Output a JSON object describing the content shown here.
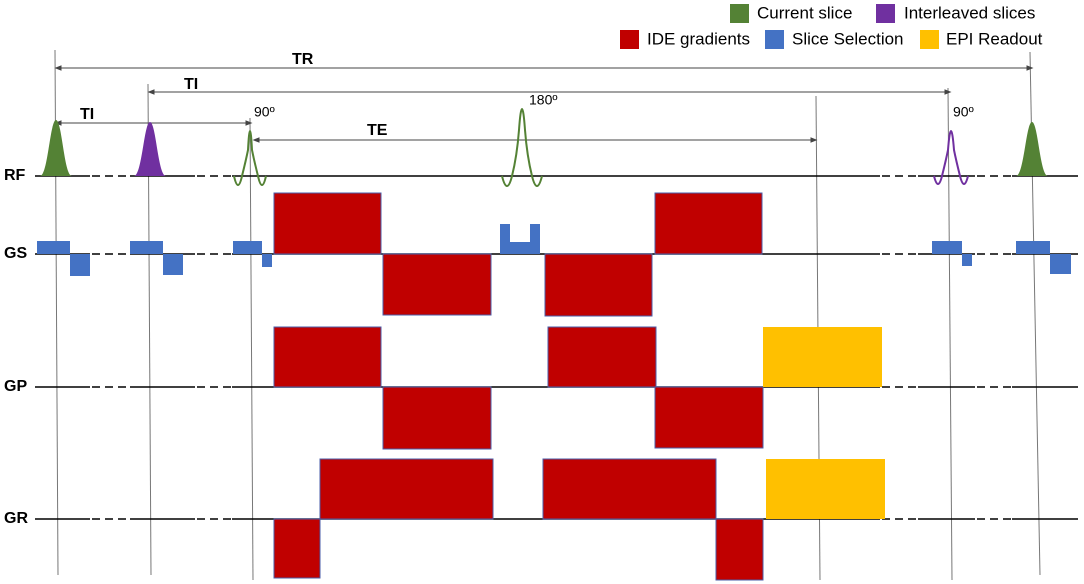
{
  "legend": [
    {
      "label": "Current slice",
      "color": "#548235"
    },
    {
      "label": "Interleaved slices",
      "color": "#7030a0"
    },
    {
      "label": "IDE gradients",
      "color": "#c00000"
    },
    {
      "label": "Slice Selection",
      "color": "#4472c4"
    },
    {
      "label": "EPI Readout",
      "color": "#ffc000"
    }
  ],
  "intervals": [
    "TR",
    "TI",
    "TI",
    "TE"
  ],
  "pulses": [
    "90º",
    "180º",
    "90º"
  ],
  "axes": [
    "RF",
    "GS",
    "GP",
    "GR"
  ]
}
